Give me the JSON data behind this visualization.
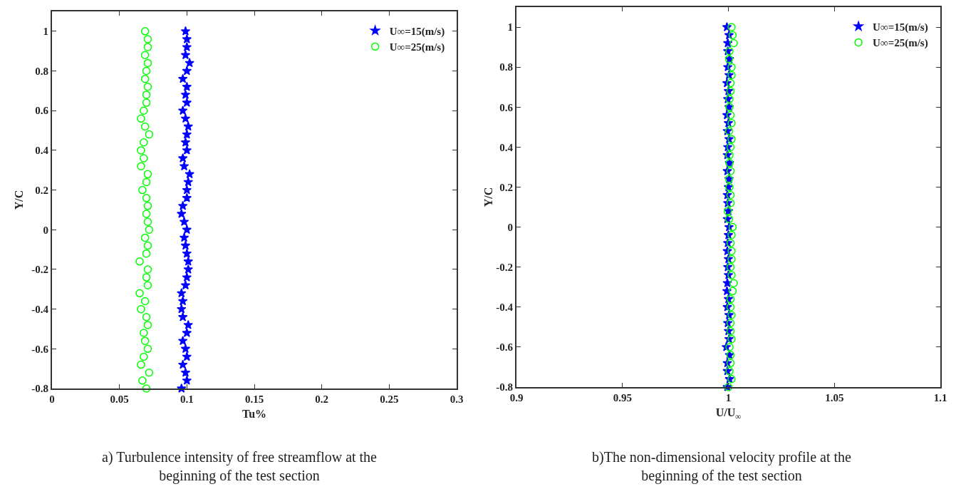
{
  "chart_data": [
    {
      "type": "scatter",
      "xlabel": "Tu%",
      "ylabel": "Y/C",
      "xlim": [
        0,
        0.3
      ],
      "xticks": [
        0,
        0.05,
        0.1,
        0.15,
        0.2,
        0.25,
        0.3
      ],
      "ylim": [
        -0.8,
        1.1
      ],
      "yticks": [
        -0.8,
        -0.6,
        -0.4,
        -0.2,
        0,
        0.2,
        0.4,
        0.6,
        0.8,
        1
      ],
      "grid": false,
      "legend": "top right",
      "annotations": [
        "a) Turbulence intensity of free streamflow at the beginning of the test section"
      ],
      "series": [
        {
          "name": "U∞=15(m/s)",
          "color": "#0000ff",
          "marker": "star",
          "x": [
            0.096,
            0.1,
            0.099,
            0.097,
            0.1,
            0.099,
            0.097,
            0.1,
            0.101,
            0.097,
            0.096,
            0.097,
            0.096,
            0.099,
            0.1,
            0.101,
            0.101,
            0.1,
            0.099,
            0.098,
            0.1,
            0.098,
            0.096,
            0.097,
            0.1,
            0.1,
            0.101,
            0.102,
            0.098,
            0.097,
            0.1,
            0.099,
            0.1,
            0.101,
            0.099,
            0.097,
            0.1,
            0.099,
            0.1,
            0.097,
            0.1,
            0.102,
            0.099,
            0.1,
            0.1,
            0.099
          ],
          "values": [
            -0.8,
            -0.76,
            -0.72,
            -0.68,
            -0.64,
            -0.6,
            -0.56,
            -0.52,
            -0.48,
            -0.44,
            -0.4,
            -0.36,
            -0.32,
            -0.28,
            -0.24,
            -0.2,
            -0.16,
            -0.12,
            -0.08,
            -0.04,
            0,
            0.04,
            0.08,
            0.12,
            0.16,
            0.2,
            0.24,
            0.28,
            0.32,
            0.36,
            0.4,
            0.44,
            0.48,
            0.52,
            0.56,
            0.6,
            0.64,
            0.68,
            0.72,
            0.76,
            0.8,
            0.84,
            0.88,
            0.92,
            0.96,
            1
          ]
        },
        {
          "name": "U∞=25(m/s)",
          "color": "#00ff00",
          "marker": "circle",
          "x": [
            0.07,
            0.067,
            0.072,
            0.066,
            0.068,
            0.071,
            0.069,
            0.068,
            0.071,
            0.07,
            0.066,
            0.069,
            0.065,
            0.071,
            0.07,
            0.071,
            0.065,
            0.07,
            0.071,
            0.069,
            0.072,
            0.071,
            0.07,
            0.071,
            0.07,
            0.067,
            0.07,
            0.071,
            0.066,
            0.068,
            0.066,
            0.068,
            0.072,
            0.069,
            0.066,
            0.068,
            0.07,
            0.07,
            0.071,
            0.069,
            0.07,
            0.071,
            0.069,
            0.071,
            0.071,
            0.069
          ],
          "values": [
            -0.8,
            -0.76,
            -0.72,
            -0.68,
            -0.64,
            -0.6,
            -0.56,
            -0.52,
            -0.48,
            -0.44,
            -0.4,
            -0.36,
            -0.32,
            -0.28,
            -0.24,
            -0.2,
            -0.16,
            -0.12,
            -0.08,
            -0.04,
            0,
            0.04,
            0.08,
            0.12,
            0.16,
            0.2,
            0.24,
            0.28,
            0.32,
            0.36,
            0.4,
            0.44,
            0.48,
            0.52,
            0.56,
            0.6,
            0.64,
            0.68,
            0.72,
            0.76,
            0.8,
            0.84,
            0.88,
            0.92,
            0.96,
            1
          ]
        }
      ]
    },
    {
      "type": "scatter",
      "xlabel": "U/U$_{∞}$",
      "ylabel": "Y/C",
      "xlim": [
        0.9,
        1.1
      ],
      "xticks": [
        0.9,
        0.95,
        1,
        1.05,
        1.1
      ],
      "ylim": [
        -0.8,
        1.1
      ],
      "yticks": [
        -0.8,
        -0.6,
        -0.4,
        -0.2,
        0,
        0.2,
        0.4,
        0.6,
        0.8,
        1
      ],
      "grid": false,
      "legend": "top right",
      "annotations": [
        "b)The non-dimensional velocity profile at the beginning of the test section"
      ],
      "series": [
        {
          "name": "U∞=15(m/s)",
          "color": "#0000ff",
          "marker": "star",
          "x": [
            0.9995,
            1.0005,
            0.9995,
            0.9995,
            1.0005,
            0.999,
            1.0003,
            1,
            0.9997,
            1.0003,
            0.9995,
            1,
            0.9993,
            0.9995,
            1,
            0.9997,
            1,
            0.9995,
            0.9997,
            1,
            1.0003,
            0.9995,
            1,
            0.9997,
            0.9995,
            1,
            1.0003,
            0.9995,
            1.0005,
            0.9995,
            0.9997,
            1.0003,
            0.9995,
            1,
            0.9993,
            1.0003,
            0.9997,
            1,
            0.9993,
            1.0003,
            0.9997,
            1.0005,
            0.9997,
            0.9997,
            1.0003,
            0.9993
          ],
          "values": [
            -0.8,
            -0.76,
            -0.72,
            -0.68,
            -0.64,
            -0.6,
            -0.56,
            -0.52,
            -0.48,
            -0.44,
            -0.4,
            -0.36,
            -0.32,
            -0.28,
            -0.24,
            -0.2,
            -0.16,
            -0.12,
            -0.08,
            -0.04,
            0,
            0.04,
            0.08,
            0.12,
            0.16,
            0.2,
            0.24,
            0.28,
            0.32,
            0.36,
            0.4,
            0.44,
            0.48,
            0.52,
            0.56,
            0.6,
            0.64,
            0.68,
            0.72,
            0.76,
            0.8,
            0.84,
            0.88,
            0.92,
            0.96,
            1
          ]
        },
        {
          "name": "U∞=25(m/s)",
          "color": "#00ff00",
          "marker": "circle",
          "x": [
            1,
            1.0015,
            1.0005,
            1.001,
            1.001,
            1.0005,
            1.0015,
            1.001,
            1.001,
            1.0015,
            1.001,
            1.001,
            1.002,
            1.0025,
            1.0015,
            1.001,
            1.0015,
            1.0015,
            1.001,
            1.0015,
            1.002,
            1.0003,
            0.9997,
            1.001,
            1.001,
            1.0005,
            1.0003,
            1.001,
            1.0005,
            1.0005,
            1.001,
            1.0015,
            1.0003,
            1.0015,
            1.001,
            1.0005,
            1.0005,
            1.001,
            1.001,
            1.0015,
            1.0015,
            1.0003,
            1.0005,
            1.0025,
            1.002,
            1.0015
          ],
          "values": [
            -0.8,
            -0.76,
            -0.72,
            -0.68,
            -0.64,
            -0.6,
            -0.56,
            -0.52,
            -0.48,
            -0.44,
            -0.4,
            -0.36,
            -0.32,
            -0.28,
            -0.24,
            -0.2,
            -0.16,
            -0.12,
            -0.08,
            -0.04,
            0,
            0.04,
            0.08,
            0.12,
            0.16,
            0.2,
            0.24,
            0.28,
            0.32,
            0.36,
            0.4,
            0.44,
            0.48,
            0.52,
            0.56,
            0.6,
            0.64,
            0.68,
            0.72,
            0.76,
            0.8,
            0.84,
            0.88,
            0.92,
            0.96,
            1
          ]
        }
      ]
    }
  ]
}
